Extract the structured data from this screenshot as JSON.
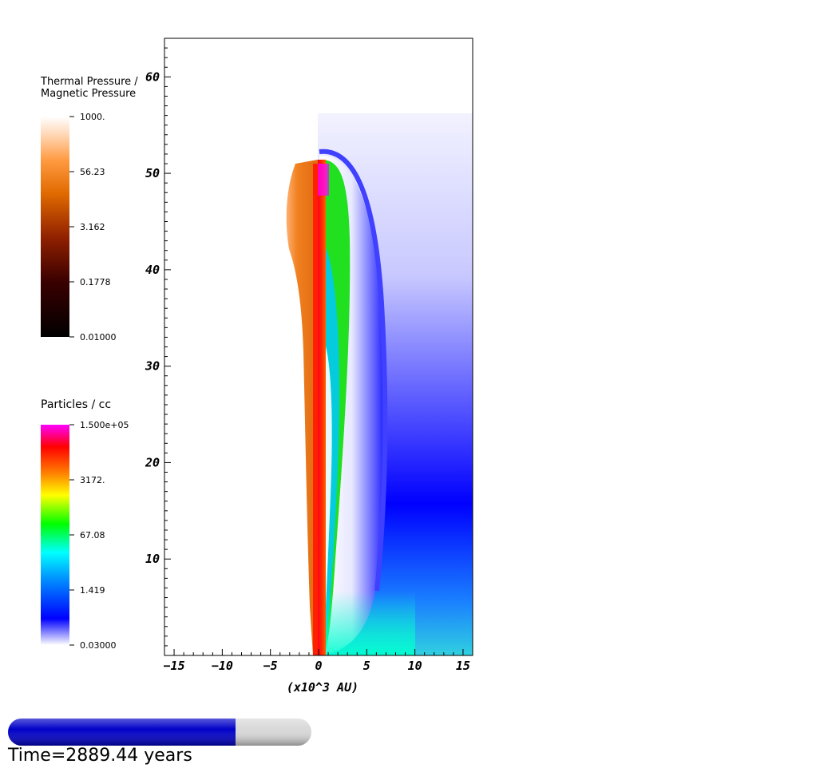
{
  "chart_data": {
    "type": "heatmap",
    "title": "",
    "xlabel": "(x10^3 AU)",
    "ylabel": "",
    "xlim": [
      -16,
      16
    ],
    "ylim": [
      0,
      64
    ],
    "x_ticks": [
      "-15",
      "-10",
      "-5",
      "0",
      "5",
      "10",
      "15"
    ],
    "y_ticks": [
      "10",
      "20",
      "30",
      "40",
      "50",
      "60"
    ],
    "left_field": {
      "name": "Thermal Pressure / Magnetic Pressure",
      "colorbar_title": "Thermal Pressure /\nMagnetic Pressure",
      "scale": "log",
      "range": [
        0.01,
        1000
      ],
      "tick_labels": [
        "1000.",
        "56.23",
        "3.162",
        "0.1778",
        "0.01000"
      ]
    },
    "right_field": {
      "name": "Particles / cc",
      "colorbar_title": "Particles / cc",
      "scale": "log",
      "range": [
        0.03,
        150000
      ],
      "tick_labels": [
        "1.500e+05",
        "3172.",
        "67.08",
        "1.419",
        "0.03000"
      ]
    }
  },
  "colors": {
    "pressure_colormap": [
      "#000000",
      "#4a0000",
      "#a02800",
      "#e06800",
      "#ff9a40",
      "#ffd8b8",
      "#ffffff"
    ],
    "density_colormap": [
      "#ffffff",
      "#0000ff",
      "#00ffff",
      "#00ff00",
      "#ffff00",
      "#ff8000",
      "#ff0000",
      "#ff00ff"
    ],
    "progress_fill": "#0000c8",
    "progress_track": "#d8d8d8"
  },
  "progress": {
    "fraction": 0.75
  },
  "time_label": "Time=2889.44 years"
}
